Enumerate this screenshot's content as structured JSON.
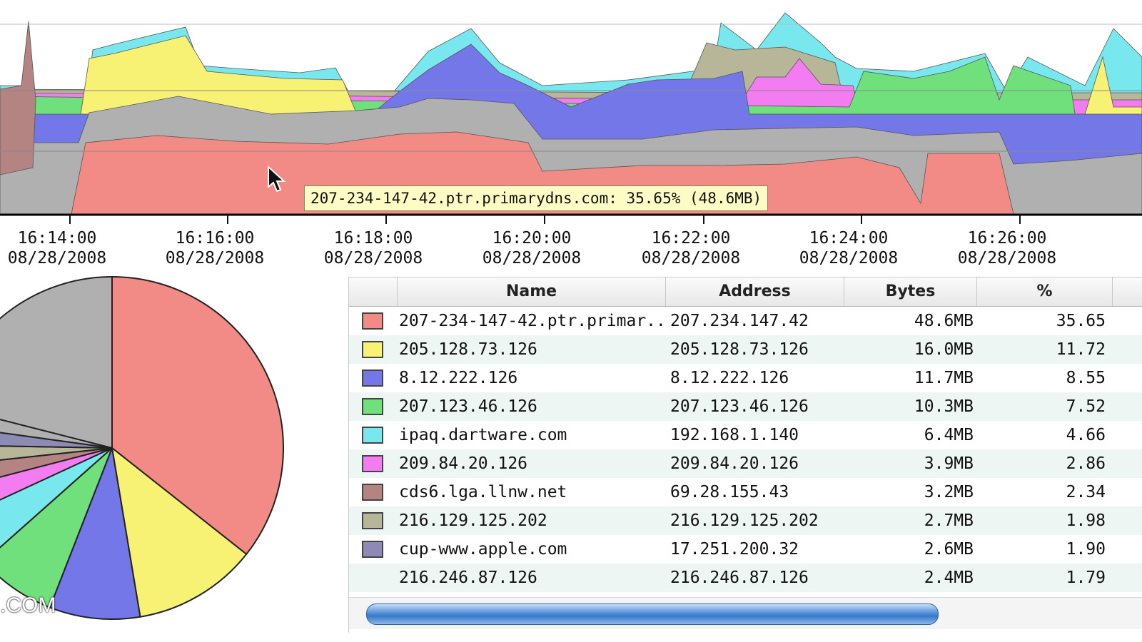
{
  "colors": {
    "salmon": "#f28b85",
    "yellow": "#f7f274",
    "blue": "#7377e8",
    "green": "#6fe07c",
    "cyan": "#79e8ee",
    "magenta": "#f27cf0",
    "brown": "#b48483",
    "olive": "#b7b699",
    "slate": "#8d8ab5",
    "gray": "#b0b0b0"
  },
  "time_axis": {
    "ticks": [
      {
        "time": "16:14:00",
        "date": "08/28/2008"
      },
      {
        "time": "16:16:00",
        "date": "08/28/2008"
      },
      {
        "time": "16:18:00",
        "date": "08/28/2008"
      },
      {
        "time": "16:20:00",
        "date": "08/28/2008"
      },
      {
        "time": "16:22:00",
        "date": "08/28/2008"
      },
      {
        "time": "16:24:00",
        "date": "08/28/2008"
      },
      {
        "time": "16:26:00",
        "date": "08/28/2008"
      }
    ]
  },
  "tooltip": {
    "text": "207-234-147-42.ptr.primarydns.com: 35.65% (48.6MB)"
  },
  "pie": {
    "partial_label": ".COM"
  },
  "table": {
    "columns": {
      "name": "Name",
      "address": "Address",
      "bytes": "Bytes",
      "pct": "%"
    },
    "rows": [
      {
        "name": "207-234-147-42.ptr.primar...",
        "address": "207.234.147.42",
        "bytes": "48.6MB",
        "pct": "35.65",
        "color": "#f28b85"
      },
      {
        "name": "205.128.73.126",
        "address": "205.128.73.126",
        "bytes": "16.0MB",
        "pct": "11.72",
        "color": "#f7f274"
      },
      {
        "name": "8.12.222.126",
        "address": "8.12.222.126",
        "bytes": "11.7MB",
        "pct": "8.55",
        "color": "#7377e8"
      },
      {
        "name": "207.123.46.126",
        "address": "207.123.46.126",
        "bytes": "10.3MB",
        "pct": "7.52",
        "color": "#6fe07c"
      },
      {
        "name": "ipaq.dartware.com",
        "address": "192.168.1.140",
        "bytes": "6.4MB",
        "pct": "4.66",
        "color": "#79e8ee"
      },
      {
        "name": "209.84.20.126",
        "address": "209.84.20.126",
        "bytes": "3.9MB",
        "pct": "2.86",
        "color": "#f27cf0"
      },
      {
        "name": "cds6.lga.llnw.net",
        "address": "69.28.155.43",
        "bytes": "3.2MB",
        "pct": "2.34",
        "color": "#b48483"
      },
      {
        "name": "216.129.125.202",
        "address": "216.129.125.202",
        "bytes": "2.7MB",
        "pct": "1.98",
        "color": "#b7b699"
      },
      {
        "name": "cup-www.apple.com",
        "address": "17.251.200.32",
        "bytes": "2.6MB",
        "pct": "1.90",
        "color": "#8d8ab5"
      },
      {
        "name": "216.246.87.126",
        "address": "216.246.87.126",
        "bytes": "2.4MB",
        "pct": "1.79",
        "color": ""
      }
    ]
  }
}
